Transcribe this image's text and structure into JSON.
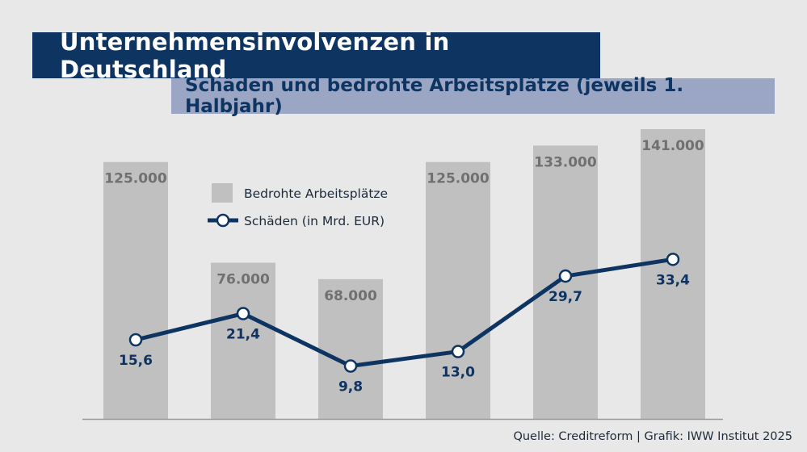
{
  "title": "Unternehmensinvolvenzen in Deutschland",
  "subtitle": "Schäden und bedrohte Arbeitsplätze (jeweils 1. Halbjahr)",
  "source": "Quelle: Creditreform | Grafik: IWW Institut 2025",
  "colors": {
    "navy": "#0e3462",
    "bar": "#c0c0c0",
    "bar_label": "#707070",
    "subtitle_bg": "#9aa6c4"
  },
  "chart_data": {
    "type": "bar",
    "categories": [
      "",
      "",
      "",
      "",
      "",
      ""
    ],
    "series": [
      {
        "name": "Bedrohte Arbeitsplätze",
        "type": "bar",
        "values": [
          125000,
          76000,
          68000,
          125000,
          133000,
          141000
        ],
        "labels": [
          "125.000",
          "76.000",
          "68.000",
          "125.000",
          "133.000",
          "141.000"
        ]
      },
      {
        "name": "Schäden (in Mrd. EUR)",
        "type": "line",
        "values": [
          15.6,
          21.4,
          9.8,
          13.0,
          29.7,
          33.4
        ],
        "labels": [
          "15,6",
          "21,4",
          "9,8",
          "13,0",
          "29,7",
          "33,4"
        ]
      }
    ],
    "legend": [
      "Bedrohte Arbeitsplätze",
      "Schäden (in Mrd. EUR)"
    ],
    "legend_position": "top-left"
  }
}
